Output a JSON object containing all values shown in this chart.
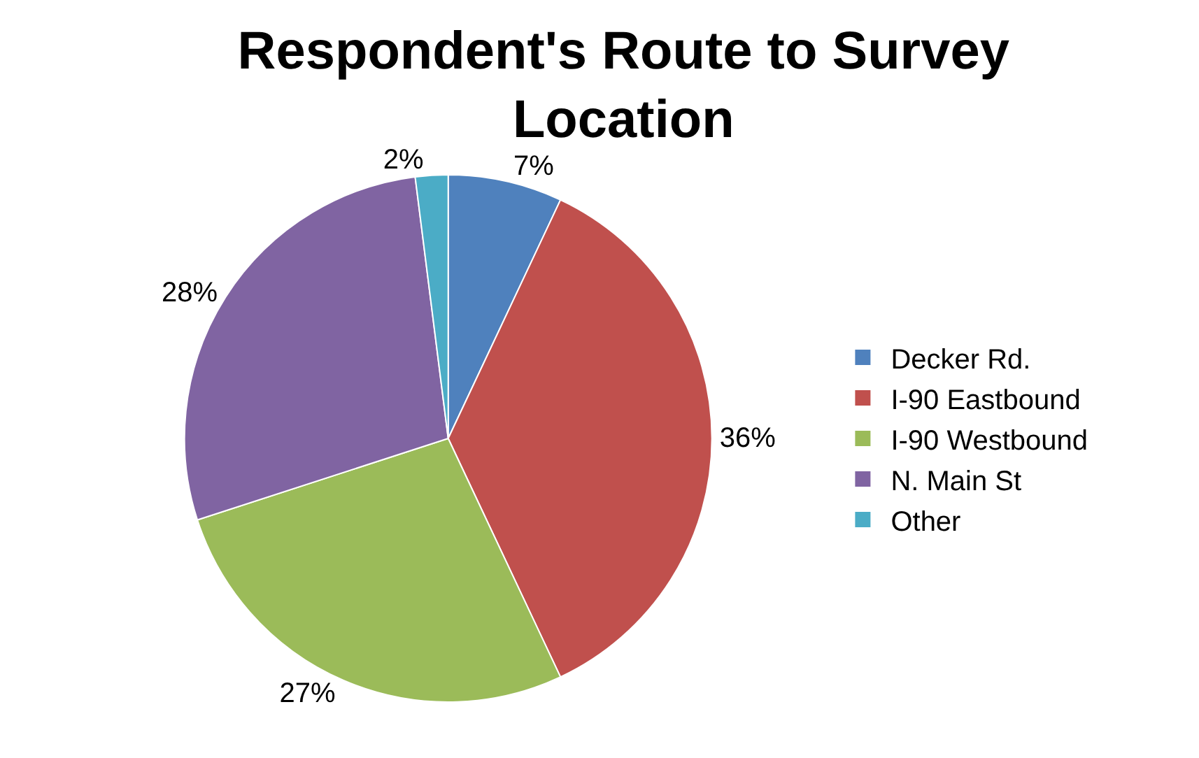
{
  "chart_data": {
    "type": "pie",
    "title": "Respondent's Route to Survey Location",
    "categories": [
      "Decker Rd.",
      "I-90 Eastbound",
      "I-90 Westbound",
      "N. Main St",
      "Other"
    ],
    "values": [
      7,
      36,
      27,
      28,
      2
    ],
    "value_labels": [
      "7%",
      "36%",
      "27%",
      "28%",
      "2%"
    ],
    "colors": [
      "#4f81bd",
      "#c0504d",
      "#9bbb59",
      "#8064a2",
      "#4bacc6"
    ],
    "legend": "right"
  }
}
